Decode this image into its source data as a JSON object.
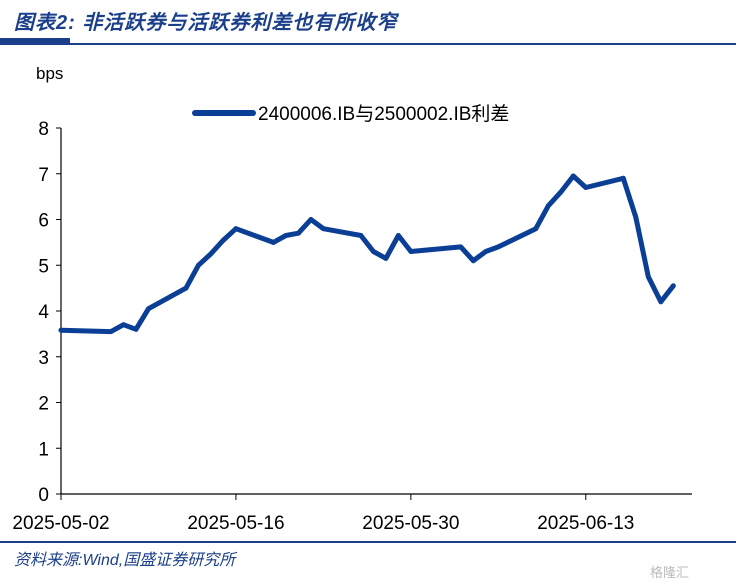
{
  "figure": {
    "title": "图表2:  非活跃券与活跃券利差也有所收窄",
    "source": "资料来源:Wind,国盛证券研究所",
    "watermark": "格隆汇"
  },
  "colors": {
    "accent": "#1b3f8b",
    "series": "#0b3f96"
  },
  "chart_data": {
    "type": "line",
    "title": "",
    "xlabel": "",
    "ylabel": "bps",
    "ylim": [
      0,
      8
    ],
    "yticks": [
      "0",
      "1",
      "2",
      "3",
      "4",
      "5",
      "6",
      "7",
      "8"
    ],
    "x_tick_labels": [
      "2025-05-02",
      "2025-05-16",
      "2025-05-30",
      "2025-06-13"
    ],
    "x_range": [
      "2025-05-02",
      "2025-06-21"
    ],
    "legend": "top-center",
    "grid": false,
    "series": [
      {
        "name": "2400006.IB与2500002.IB利差",
        "x": [
          "2025-05-02",
          "2025-05-06",
          "2025-05-07",
          "2025-05-08",
          "2025-05-09",
          "2025-05-12",
          "2025-05-13",
          "2025-05-14",
          "2025-05-15",
          "2025-05-16",
          "2025-05-19",
          "2025-05-20",
          "2025-05-21",
          "2025-05-22",
          "2025-05-23",
          "2025-05-26",
          "2025-05-27",
          "2025-05-28",
          "2025-05-29",
          "2025-05-30",
          "2025-06-03",
          "2025-06-04",
          "2025-06-05",
          "2025-06-06",
          "2025-06-09",
          "2025-06-10",
          "2025-06-11",
          "2025-06-12",
          "2025-06-13",
          "2025-06-16",
          "2025-06-17",
          "2025-06-18",
          "2025-06-19",
          "2025-06-20"
        ],
        "values": [
          3.58,
          3.55,
          3.7,
          3.6,
          4.05,
          4.5,
          5.0,
          5.25,
          5.55,
          5.8,
          5.5,
          5.65,
          5.7,
          6.0,
          5.8,
          5.65,
          5.3,
          5.15,
          5.65,
          5.3,
          5.4,
          5.1,
          5.3,
          5.4,
          5.8,
          6.3,
          6.6,
          6.95,
          6.7,
          6.9,
          6.05,
          4.75,
          4.2,
          4.55
        ]
      }
    ]
  }
}
